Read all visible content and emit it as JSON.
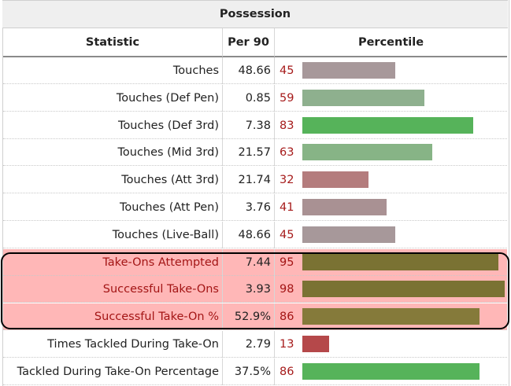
{
  "title": "Possession",
  "columns": {
    "statistic": "Statistic",
    "per90": "Per 90",
    "percentile": "Percentile"
  },
  "rows": [
    {
      "stat": "Touches",
      "per90": "48.66",
      "pct": "45",
      "pct_value": 45,
      "bar_color": "#a7989a",
      "highlight": false
    },
    {
      "stat": "Touches (Def Pen)",
      "per90": "0.85",
      "pct": "59",
      "pct_value": 59,
      "bar_color": "#8eb08e",
      "highlight": false
    },
    {
      "stat": "Touches (Def 3rd)",
      "per90": "7.38",
      "pct": "83",
      "pct_value": 83,
      "bar_color": "#56b35a",
      "highlight": false
    },
    {
      "stat": "Touches (Mid 3rd)",
      "per90": "21.57",
      "pct": "63",
      "pct_value": 63,
      "bar_color": "#87b486",
      "highlight": false
    },
    {
      "stat": "Touches (Att 3rd)",
      "per90": "21.74",
      "pct": "32",
      "pct_value": 32,
      "bar_color": "#b47c7d",
      "highlight": false
    },
    {
      "stat": "Touches (Att Pen)",
      "per90": "3.76",
      "pct": "41",
      "pct_value": 41,
      "bar_color": "#a99193",
      "highlight": false
    },
    {
      "stat": "Touches (Live-Ball)",
      "per90": "48.66",
      "pct": "45",
      "pct_value": 45,
      "bar_color": "#a7989a",
      "highlight": false
    },
    {
      "stat": "Take-Ons Attempted",
      "per90": "7.44",
      "pct": "95",
      "pct_value": 95,
      "bar_color": "#7a7233",
      "highlight": true
    },
    {
      "stat": "Successful Take-Ons",
      "per90": "3.93",
      "pct": "98",
      "pct_value": 98,
      "bar_color": "#7a7233",
      "highlight": true
    },
    {
      "stat": "Successful Take-On %",
      "per90": "52.9%",
      "pct": "86",
      "pct_value": 86,
      "bar_color": "#857a3a",
      "highlight": true
    },
    {
      "stat": "Times Tackled During Take-On",
      "per90": "2.79",
      "pct": "13",
      "pct_value": 13,
      "bar_color": "#b5484a",
      "highlight": false
    },
    {
      "stat": "Tackled During Take-On Percentage",
      "per90": "37.5%",
      "pct": "86",
      "pct_value": 86,
      "bar_color": "#56b35a",
      "highlight": false
    }
  ]
}
